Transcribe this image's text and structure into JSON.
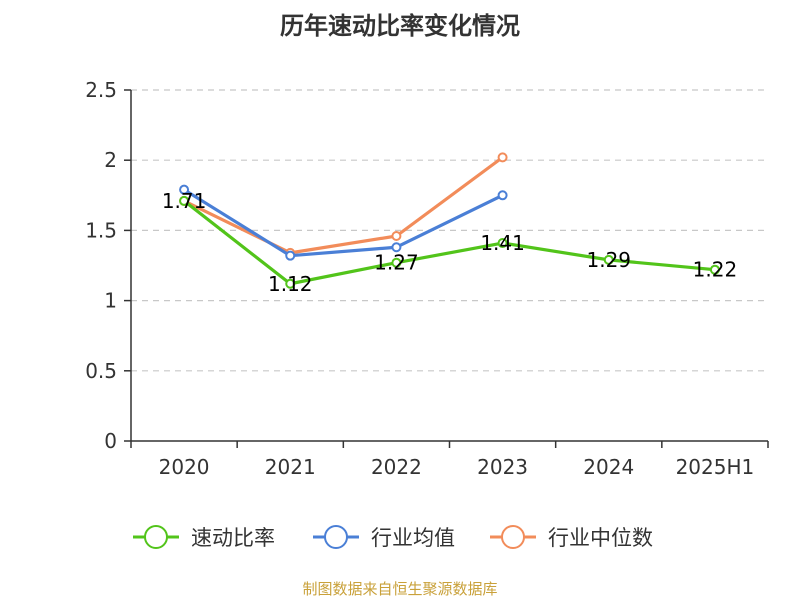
{
  "title": "历年速动比率变化情况",
  "source": "制图数据来自恒生聚源数据库",
  "chart_data": {
    "type": "line",
    "categories": [
      "2020",
      "2021",
      "2022",
      "2023",
      "2024",
      "2025H1"
    ],
    "ylim": [
      0,
      2.5
    ],
    "yticks": [
      "0",
      "0.5",
      "1",
      "1.5",
      "2",
      "2.5"
    ],
    "grid": true,
    "legend_position": "bottom",
    "series": [
      {
        "name": "速动比率",
        "color": "#52c41a",
        "values": [
          1.71,
          1.12,
          1.27,
          1.41,
          1.29,
          1.22
        ],
        "labels": [
          "1.71",
          "1.12",
          "1.27",
          "1.41",
          "1.29",
          "1.22"
        ]
      },
      {
        "name": "行业均值",
        "color": "#4a7fd6",
        "values": [
          1.79,
          1.32,
          1.38,
          1.75,
          null,
          null
        ]
      },
      {
        "name": "行业中位数",
        "color": "#f28c5a",
        "values": [
          1.71,
          1.34,
          1.46,
          2.02,
          null,
          null
        ]
      }
    ]
  }
}
